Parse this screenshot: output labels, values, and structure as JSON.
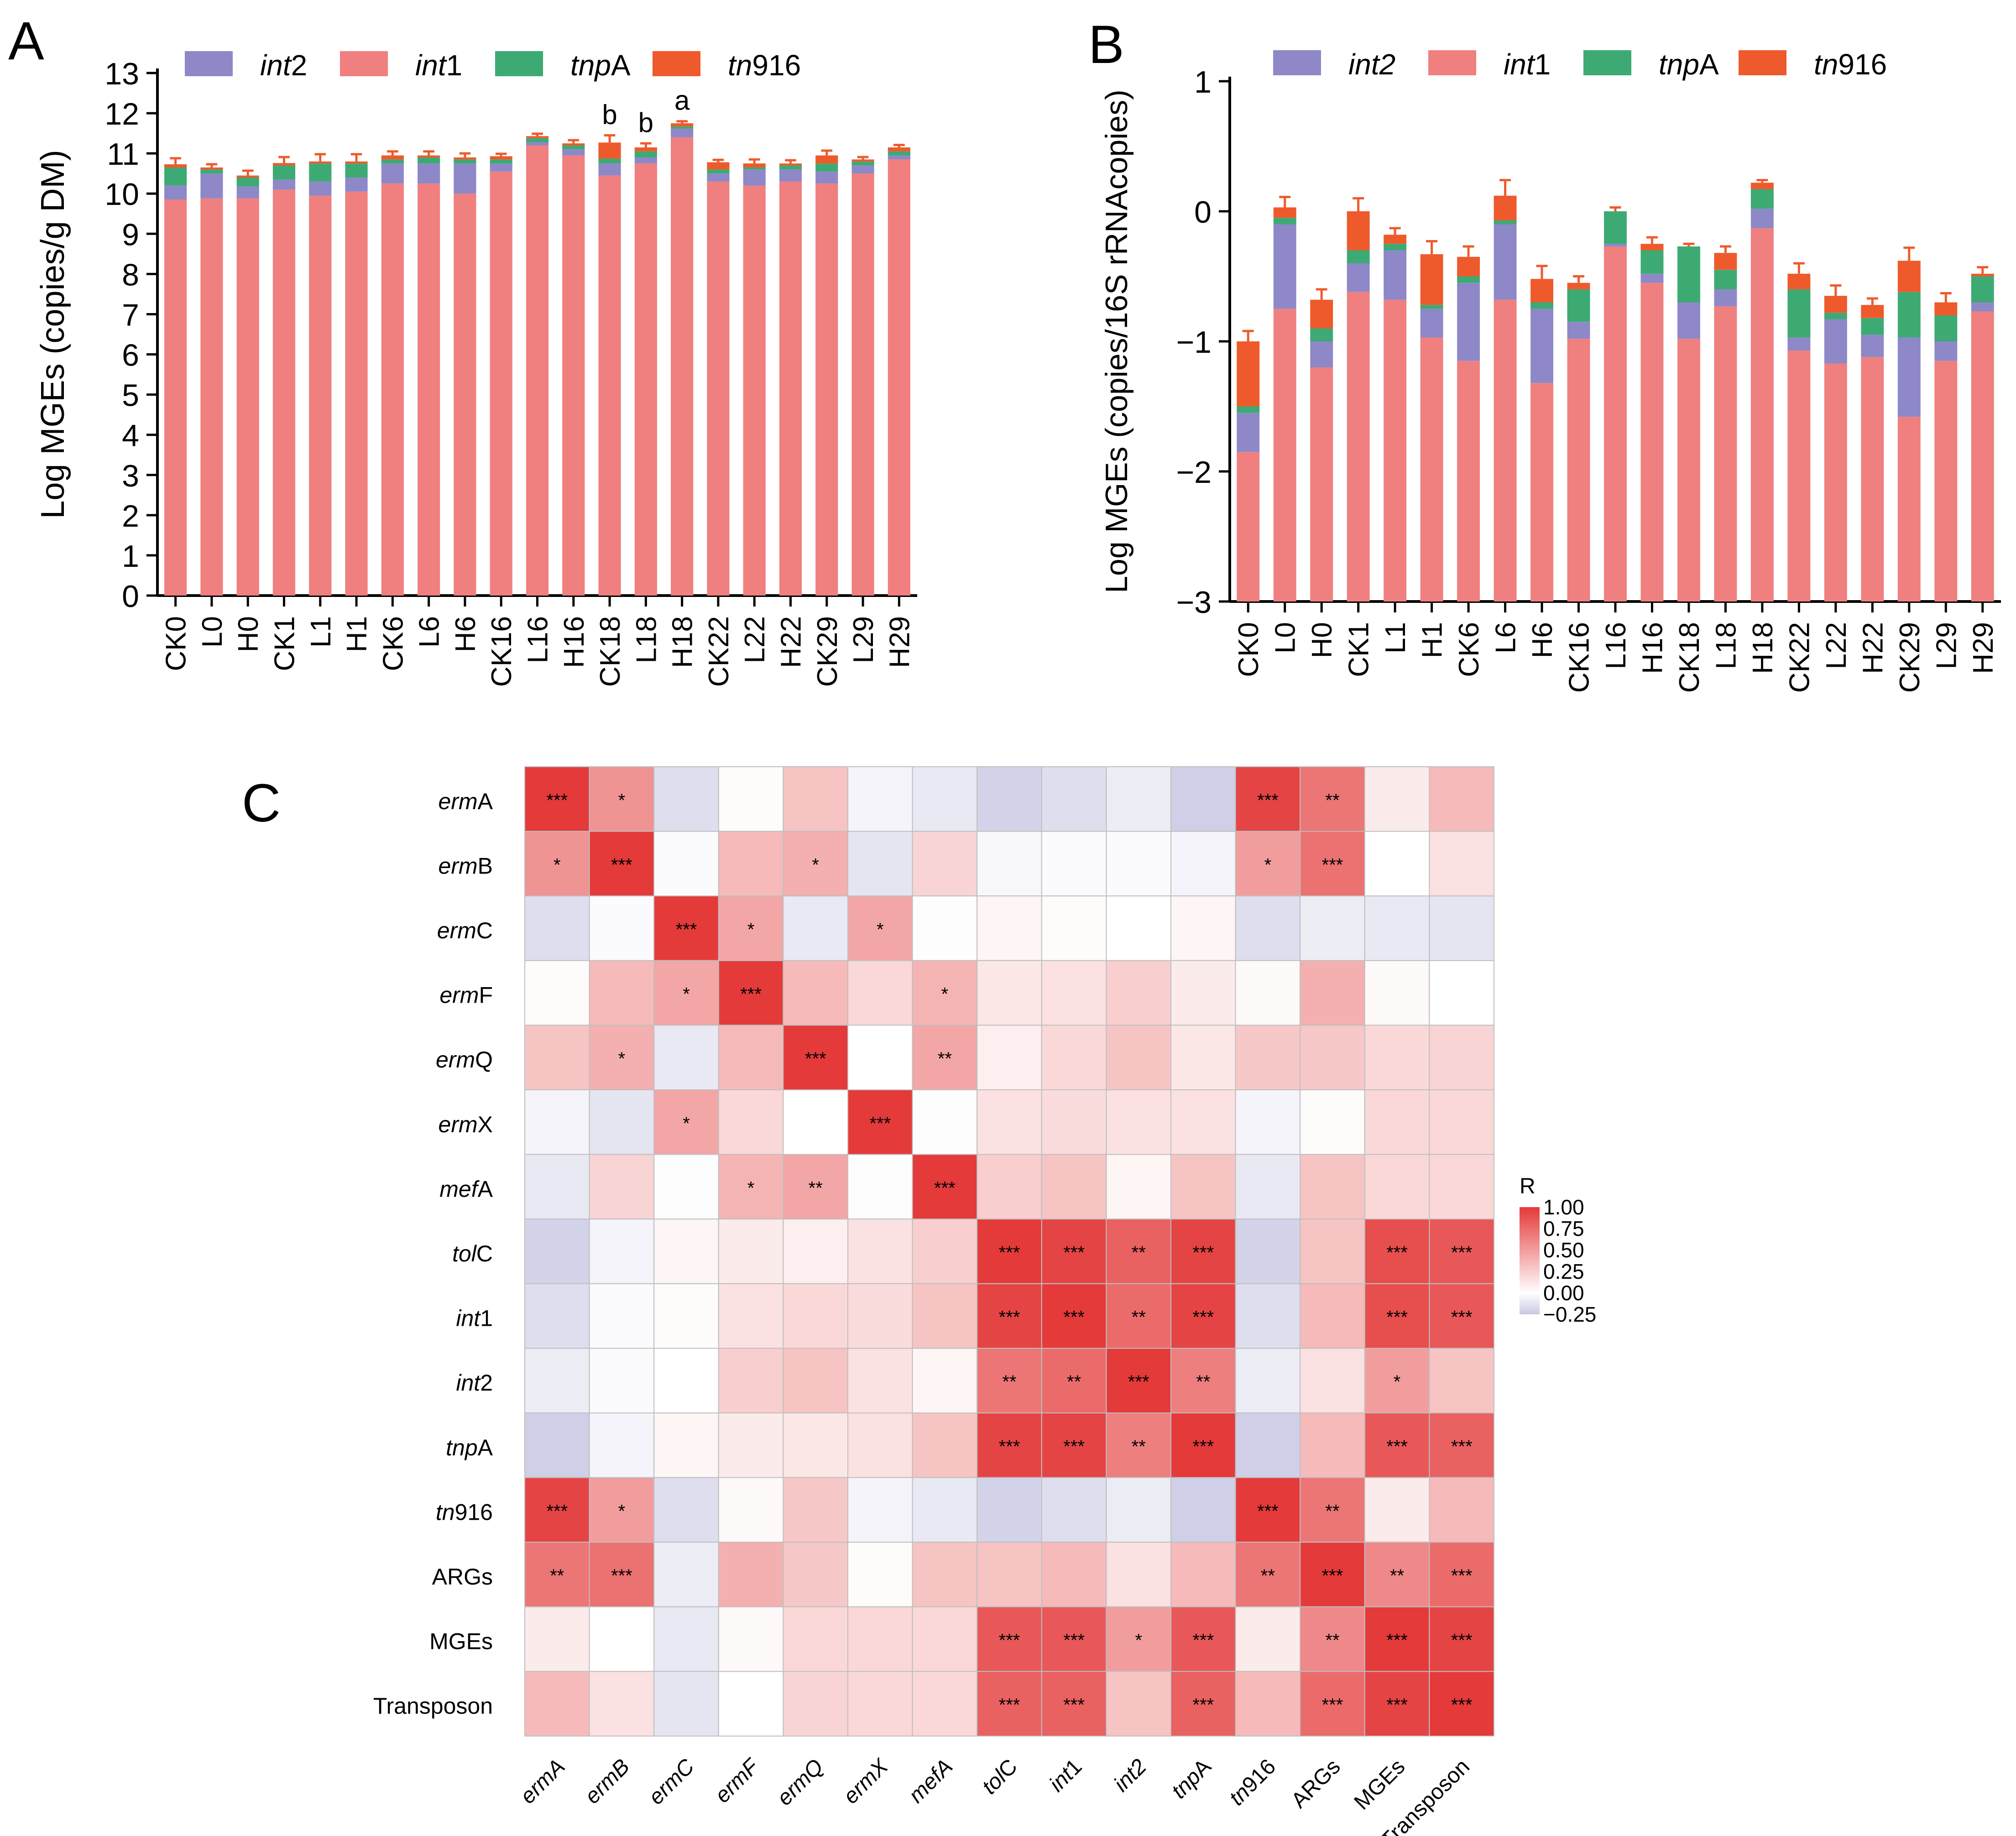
{
  "chart_data": [
    {
      "type": "bar",
      "stacked": true,
      "panel": "A",
      "ylabel": "Log  MGEs (copies/g DM)",
      "xlabel": "",
      "ylim": [
        0,
        13
      ],
      "yticks": [
        "0",
        "1",
        "2",
        "3",
        "4",
        "5",
        "6",
        "7",
        "8",
        "9",
        "10",
        "11",
        "12",
        "13"
      ],
      "categories": [
        "CK0",
        "L0",
        "H0",
        "CK1",
        "L1",
        "H1",
        "CK6",
        "L6",
        "H6",
        "CK16",
        "L16",
        "H16",
        "CK18",
        "L18",
        "H18",
        "CK22",
        "L22",
        "H22",
        "CK29",
        "L29",
        "H29"
      ],
      "legend": [
        {
          "pre": "",
          "it": "int",
          "post": "2",
          "color": "#8E88C8"
        },
        {
          "pre": "",
          "it": "int",
          "post": "1",
          "color": "#F07F7F"
        },
        {
          "pre": "",
          "it": "tnp",
          "post": "A",
          "color": "#3DAA74"
        },
        {
          "pre": "",
          "it": "tn",
          "post": "916",
          "color": "#EE5A2C"
        }
      ],
      "series": [
        {
          "name": "int1",
          "color": "#F07F7F",
          "values": [
            9.85,
            9.88,
            9.88,
            10.1,
            9.95,
            10.05,
            10.25,
            10.25,
            10.0,
            10.55,
            11.2,
            10.95,
            10.45,
            10.75,
            11.4,
            10.3,
            10.2,
            10.3,
            10.25,
            10.5,
            10.85
          ]
        },
        {
          "name": "int2",
          "color": "#8E88C8",
          "values": [
            0.35,
            0.62,
            0.3,
            0.25,
            0.35,
            0.35,
            0.5,
            0.5,
            0.75,
            0.2,
            0.08,
            0.15,
            0.3,
            0.15,
            0.22,
            0.2,
            0.4,
            0.3,
            0.3,
            0.2,
            0.1
          ]
        },
        {
          "name": "tnpA",
          "color": "#3DAA74",
          "values": [
            0.45,
            0.1,
            0.22,
            0.35,
            0.45,
            0.35,
            0.1,
            0.15,
            0.1,
            0.1,
            0.1,
            0.1,
            0.12,
            0.15,
            0.05,
            0.1,
            0.05,
            0.1,
            0.2,
            0.1,
            0.1
          ]
        },
        {
          "name": "tn916",
          "color": "#EE5A2C",
          "values": [
            0.08,
            0.05,
            0.05,
            0.06,
            0.05,
            0.05,
            0.1,
            0.05,
            0.05,
            0.08,
            0.05,
            0.05,
            0.4,
            0.1,
            0.08,
            0.18,
            0.1,
            0.05,
            0.2,
            0.05,
            0.1
          ]
        }
      ],
      "errors": [
        0.15,
        0.08,
        0.12,
        0.15,
        0.18,
        0.18,
        0.1,
        0.1,
        0.1,
        0.06,
        0.06,
        0.08,
        0.18,
        0.1,
        0.05,
        0.06,
        0.1,
        0.08,
        0.12,
        0.06,
        0.06
      ],
      "annotations": [
        {
          "category": "CK18",
          "text": "b"
        },
        {
          "category": "L18",
          "text": "b"
        },
        {
          "category": "H18",
          "text": "a"
        }
      ]
    },
    {
      "type": "bar",
      "stacked": true,
      "panel": "B",
      "ylabel": "Log MGEs (copies/16S rRNAcopies)",
      "xlabel": "",
      "ylim": [
        -3,
        1
      ],
      "yticks": [
        "-3",
        "-2",
        "-1",
        "0",
        "1"
      ],
      "categories": [
        "CK0",
        "L0",
        "H0",
        "CK1",
        "L1",
        "H1",
        "CK6",
        "L6",
        "H6",
        "CK16",
        "L16",
        "H16",
        "CK18",
        "L18",
        "H18",
        "CK22",
        "L22",
        "H22",
        "CK29",
        "L29",
        "H29"
      ],
      "legend": [
        {
          "pre": "",
          "it": "int2",
          "post": "",
          "color": "#8E88C8"
        },
        {
          "pre": "",
          "it": "int",
          "post": "1",
          "color": "#F07F7F"
        },
        {
          "pre": "",
          "it": "tnp",
          "post": "A",
          "color": "#3DAA74"
        },
        {
          "pre": "",
          "it": "tn",
          "post": "916",
          "color": "#EE5A2C"
        }
      ],
      "stack_boundaries": [
        {
          "int1": -1.85,
          "int2": -1.55,
          "tnpA": -1.5,
          "tn916": -1.0
        },
        {
          "int1": -0.75,
          "int2": -0.1,
          "tnpA": -0.05,
          "tn916": 0.03
        },
        {
          "int1": -1.2,
          "int2": -1.0,
          "tnpA": -0.9,
          "tn916": -0.68
        },
        {
          "int1": -0.62,
          "int2": -0.4,
          "tnpA": -0.3,
          "tn916": 0.0
        },
        {
          "int1": -0.68,
          "int2": -0.3,
          "tnpA": -0.25,
          "tn916": -0.18
        },
        {
          "int1": -0.97,
          "int2": -0.75,
          "tnpA": -0.72,
          "tn916": -0.33
        },
        {
          "int1": -1.15,
          "int2": -0.55,
          "tnpA": -0.5,
          "tn916": -0.35
        },
        {
          "int1": -0.68,
          "int2": -0.1,
          "tnpA": -0.07,
          "tn916": 0.12
        },
        {
          "int1": -1.32,
          "int2": -0.75,
          "tnpA": -0.7,
          "tn916": -0.52
        },
        {
          "int1": -0.98,
          "int2": -0.85,
          "tnpA": -0.6,
          "tn916": -0.55
        },
        {
          "int1": -0.27,
          "int2": -0.25,
          "tnpA": 0.0,
          "tn916": 0.0
        },
        {
          "int1": -0.55,
          "int2": -0.48,
          "tnpA": -0.3,
          "tn916": -0.25
        },
        {
          "int1": -0.98,
          "int2": -0.7,
          "tnpA": -0.27,
          "tn916": -0.27
        },
        {
          "int1": -0.73,
          "int2": -0.6,
          "tnpA": -0.45,
          "tn916": -0.32
        },
        {
          "int1": -0.13,
          "int2": 0.02,
          "tnpA": 0.17,
          "tn916": 0.22
        },
        {
          "int1": -1.07,
          "int2": -0.97,
          "tnpA": -0.6,
          "tn916": -0.48
        },
        {
          "int1": -1.17,
          "int2": -0.83,
          "tnpA": -0.78,
          "tn916": -0.65
        },
        {
          "int1": -1.12,
          "int2": -0.95,
          "tnpA": -0.82,
          "tn916": -0.72
        },
        {
          "int1": -1.58,
          "int2": -0.97,
          "tnpA": -0.62,
          "tn916": -0.38
        },
        {
          "int1": -1.15,
          "int2": -1.0,
          "tnpA": -0.8,
          "tn916": -0.7
        },
        {
          "int1": -0.77,
          "int2": -0.7,
          "tnpA": -0.5,
          "tn916": -0.48
        }
      ],
      "errors": [
        0.08,
        0.08,
        0.08,
        0.1,
        0.05,
        0.1,
        0.08,
        0.12,
        0.1,
        0.05,
        0.03,
        0.05,
        0.02,
        0.05,
        0.02,
        0.08,
        0.08,
        0.05,
        0.1,
        0.07,
        0.05
      ]
    },
    {
      "type": "heatmap",
      "panel": "C",
      "rows": [
        {
          "it": "erm",
          "post": "A"
        },
        {
          "it": "erm",
          "post": "B"
        },
        {
          "it": "erm",
          "post": "C"
        },
        {
          "it": "erm",
          "post": "F"
        },
        {
          "it": "erm",
          "post": "Q"
        },
        {
          "it": "erm",
          "post": "X"
        },
        {
          "it": "mef",
          "post": "A"
        },
        {
          "it": "tol",
          "post": "C"
        },
        {
          "it": "int",
          "post": "1"
        },
        {
          "it": "int",
          "post": "2"
        },
        {
          "it": "tnp",
          "post": "A"
        },
        {
          "it": "tn",
          "post": "916"
        },
        {
          "it": "",
          "post": "ARGs"
        },
        {
          "it": "",
          "post": "MGEs"
        },
        {
          "it": "",
          "post": "Transposon"
        }
      ],
      "columns": [
        {
          "it": "ermA",
          "post": ""
        },
        {
          "it": "ermB",
          "post": ""
        },
        {
          "it": "ermC",
          "post": ""
        },
        {
          "it": "ermF",
          "post": ""
        },
        {
          "it": "ermQ",
          "post": ""
        },
        {
          "it": "ermX",
          "post": ""
        },
        {
          "it": "mefA",
          "post": ""
        },
        {
          "it": "tol",
          "post": "C"
        },
        {
          "it": "int",
          "post": "1"
        },
        {
          "it": "int2",
          "post": ""
        },
        {
          "it": "tnp",
          "post": "A"
        },
        {
          "it": "tn",
          "post": "916"
        },
        {
          "it": "",
          "post": "ARGs"
        },
        {
          "it": "",
          "post": "MGEs"
        },
        {
          "it": "",
          "post": "Transposon"
        }
      ],
      "values": [
        [
          1.0,
          0.55,
          -0.15,
          0.02,
          0.3,
          -0.05,
          -0.1,
          -0.2,
          -0.15,
          -0.08,
          -0.22,
          0.95,
          0.7,
          0.1,
          0.35
        ],
        [
          0.55,
          1.0,
          -0.02,
          0.35,
          0.4,
          -0.12,
          0.22,
          -0.03,
          -0.02,
          -0.02,
          -0.05,
          0.5,
          0.72,
          0.0,
          0.15
        ],
        [
          -0.15,
          -0.02,
          1.0,
          0.45,
          -0.1,
          0.45,
          -0.01,
          0.05,
          0.02,
          0.0,
          0.05,
          -0.15,
          -0.08,
          -0.1,
          -0.12
        ],
        [
          0.02,
          0.35,
          0.45,
          1.0,
          0.35,
          0.2,
          0.38,
          0.12,
          0.15,
          0.25,
          0.1,
          0.03,
          0.4,
          0.03,
          0.0
        ],
        [
          0.3,
          0.4,
          -0.1,
          0.35,
          1.0,
          0.0,
          0.45,
          0.08,
          0.2,
          0.3,
          0.12,
          0.28,
          0.28,
          0.2,
          0.22
        ],
        [
          -0.05,
          -0.12,
          0.45,
          0.2,
          0.0,
          1.0,
          -0.01,
          0.15,
          0.18,
          0.15,
          0.15,
          -0.05,
          0.02,
          0.2,
          0.2
        ],
        [
          -0.1,
          0.22,
          -0.01,
          0.38,
          0.45,
          -0.01,
          1.0,
          0.25,
          0.3,
          0.05,
          0.3,
          -0.1,
          0.3,
          0.2,
          0.2
        ],
        [
          -0.2,
          -0.05,
          0.05,
          0.1,
          0.08,
          0.15,
          0.25,
          1.0,
          0.95,
          0.8,
          0.95,
          -0.2,
          0.3,
          0.9,
          0.85
        ],
        [
          -0.15,
          -0.02,
          0.02,
          0.15,
          0.2,
          0.18,
          0.3,
          0.95,
          1.0,
          0.75,
          0.95,
          -0.15,
          0.35,
          0.9,
          0.85
        ],
        [
          -0.08,
          -0.02,
          0.0,
          0.25,
          0.3,
          0.15,
          0.05,
          0.7,
          0.75,
          1.0,
          0.65,
          -0.08,
          0.15,
          0.5,
          0.3
        ],
        [
          -0.22,
          -0.05,
          0.05,
          0.1,
          0.12,
          0.15,
          0.3,
          0.95,
          0.95,
          0.65,
          1.0,
          -0.22,
          0.35,
          0.85,
          0.8
        ],
        [
          0.95,
          0.5,
          -0.15,
          0.03,
          0.28,
          -0.05,
          -0.1,
          -0.2,
          -0.15,
          -0.08,
          -0.22,
          1.0,
          0.7,
          0.1,
          0.35
        ],
        [
          0.7,
          0.72,
          -0.08,
          0.4,
          0.28,
          0.02,
          0.3,
          0.3,
          0.35,
          0.15,
          0.35,
          0.7,
          1.0,
          0.6,
          0.75
        ],
        [
          0.1,
          0.0,
          -0.1,
          0.03,
          0.2,
          0.2,
          0.2,
          0.85,
          0.85,
          0.5,
          0.85,
          0.1,
          0.6,
          1.0,
          0.95
        ],
        [
          0.35,
          0.15,
          -0.12,
          0.0,
          0.22,
          0.2,
          0.2,
          0.8,
          0.8,
          0.3,
          0.8,
          0.35,
          0.75,
          0.95,
          1.0
        ]
      ],
      "significance": [
        [
          "***",
          "*",
          "",
          "",
          "",
          "",
          "",
          "",
          "",
          "",
          "",
          "***",
          "**",
          "",
          ""
        ],
        [
          "*",
          "***",
          "",
          "",
          "*",
          "",
          "",
          "",
          "",
          "",
          "",
          "*",
          "***",
          "",
          ""
        ],
        [
          "",
          "",
          "***",
          "*",
          "",
          "*",
          "",
          "",
          "",
          "",
          "",
          "",
          "",
          "",
          ""
        ],
        [
          "",
          "",
          "*",
          "***",
          "",
          "",
          "*",
          "",
          "",
          "",
          "",
          "",
          "",
          "",
          ""
        ],
        [
          "",
          "*",
          "",
          "",
          "***",
          "",
          "**",
          "",
          "",
          "",
          "",
          "",
          "",
          "",
          ""
        ],
        [
          "",
          "",
          "*",
          "",
          "",
          "***",
          "",
          "",
          "",
          "",
          "",
          "",
          "",
          "",
          ""
        ],
        [
          "",
          "",
          "",
          "*",
          "**",
          "",
          "***",
          "",
          "",
          "",
          "",
          "",
          "",
          "",
          ""
        ],
        [
          "",
          "",
          "",
          "",
          "",
          "",
          "",
          "***",
          "***",
          "**",
          "***",
          "",
          "",
          "***",
          "***"
        ],
        [
          "",
          "",
          "",
          "",
          "",
          "",
          "",
          "***",
          "***",
          "**",
          "***",
          "",
          "",
          "***",
          "***"
        ],
        [
          "",
          "",
          "",
          "",
          "",
          "",
          "",
          "**",
          "**",
          "***",
          "**",
          "",
          "",
          "*",
          ""
        ],
        [
          "",
          "",
          "",
          "",
          "",
          "",
          "",
          "***",
          "***",
          "**",
          "***",
          "",
          "",
          "***",
          "***"
        ],
        [
          "***",
          "*",
          "",
          "",
          "",
          "",
          "",
          "",
          "",
          "",
          "",
          "***",
          "**",
          "",
          ""
        ],
        [
          "**",
          "***",
          "",
          "",
          "",
          "",
          "",
          "",
          "",
          "",
          "",
          "**",
          "***",
          "**",
          "***"
        ],
        [
          "",
          "",
          "",
          "",
          "",
          "",
          "",
          "***",
          "***",
          "*",
          "***",
          "",
          "**",
          "***",
          "***"
        ],
        [
          "",
          "",
          "",
          "",
          "",
          "",
          "",
          "***",
          "***",
          "",
          "***",
          "",
          "***",
          "***",
          "***"
        ]
      ],
      "colorbar": {
        "title": "R",
        "ticks": [
          "1.00",
          "0.75",
          "0.50",
          "0.25",
          "0.00",
          "−0.25"
        ],
        "range": [
          -0.25,
          1.0
        ],
        "high_color": "#E43A3A",
        "mid_color": "#FFFFFF",
        "low_color": "#C8C8E4"
      }
    }
  ],
  "panel_labels": [
    "A",
    "B",
    "C"
  ]
}
